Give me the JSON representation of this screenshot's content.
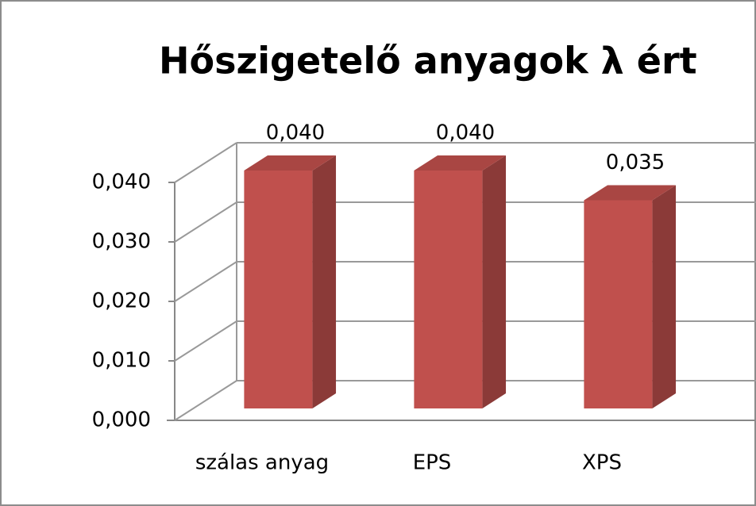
{
  "chart_data": {
    "type": "bar3d",
    "title": "Hőszigetelő anyagok λ ért",
    "categories": [
      "szálas anyag",
      "EPS",
      "XPS"
    ],
    "values": [
      0.04,
      0.04,
      0.035
    ],
    "value_labels": [
      "0,040",
      "0,040",
      "0,035"
    ],
    "color": "#c0504d",
    "ylim": [
      0,
      0.04
    ],
    "yticks": [
      {
        "value": 0,
        "label": "0,000"
      },
      {
        "value": 0.01,
        "label": "0,010"
      },
      {
        "value": 0.02,
        "label": "0,020"
      },
      {
        "value": 0.03,
        "label": "0,030"
      },
      {
        "value": 0.04,
        "label": "0,040"
      }
    ],
    "grid": true
  }
}
